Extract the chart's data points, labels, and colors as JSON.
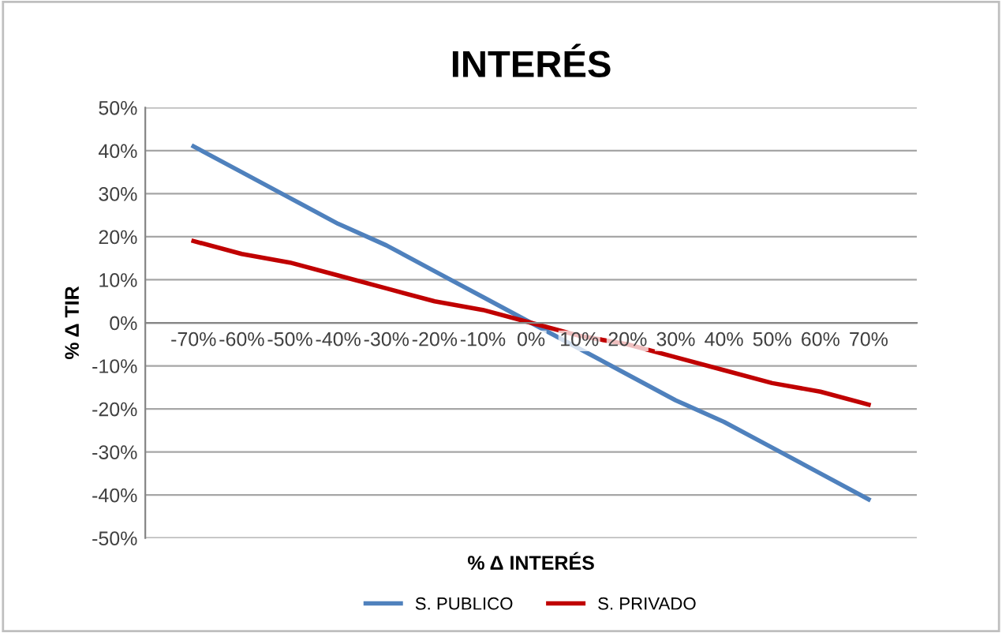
{
  "chart_data": {
    "type": "line",
    "title": "INTERÉS",
    "xlabel": "% Δ INTERÉS",
    "ylabel": "% Δ TIR",
    "categories": [
      "-70%",
      "-60%",
      "-50%",
      "-40%",
      "-30%",
      "-20%",
      "-10%",
      "0%",
      "10%",
      "20%",
      "30%",
      "40%",
      "50%",
      "60%",
      "70%"
    ],
    "series": [
      {
        "name": "S. PUBLICO",
        "color": "#4f81bd",
        "values": [
          41,
          35,
          29,
          23,
          18,
          12,
          6,
          0,
          -6,
          -12,
          -18,
          -23,
          -29,
          -35,
          -41
        ]
      },
      {
        "name": "S. PRIVADO",
        "color": "#c00000",
        "values": [
          19,
          16,
          14,
          11,
          8,
          5,
          3,
          0,
          -3,
          -5,
          -8,
          -11,
          -14,
          -16,
          -19
        ]
      }
    ],
    "ylim": [
      -50,
      50
    ],
    "yticks": [
      {
        "value": -50,
        "label": "-50%"
      },
      {
        "value": -40,
        "label": "-40%"
      },
      {
        "value": -30,
        "label": "-30%"
      },
      {
        "value": -20,
        "label": "-20%"
      },
      {
        "value": -10,
        "label": "-10%"
      },
      {
        "value": 0,
        "label": "0%"
      },
      {
        "value": 10,
        "label": "10%"
      },
      {
        "value": 20,
        "label": "20%"
      },
      {
        "value": 30,
        "label": "30%"
      },
      {
        "value": 40,
        "label": "40%"
      },
      {
        "value": 50,
        "label": "50%"
      }
    ],
    "grid": "y",
    "legend": "bottom",
    "marker": "none",
    "line_style": "solid"
  }
}
